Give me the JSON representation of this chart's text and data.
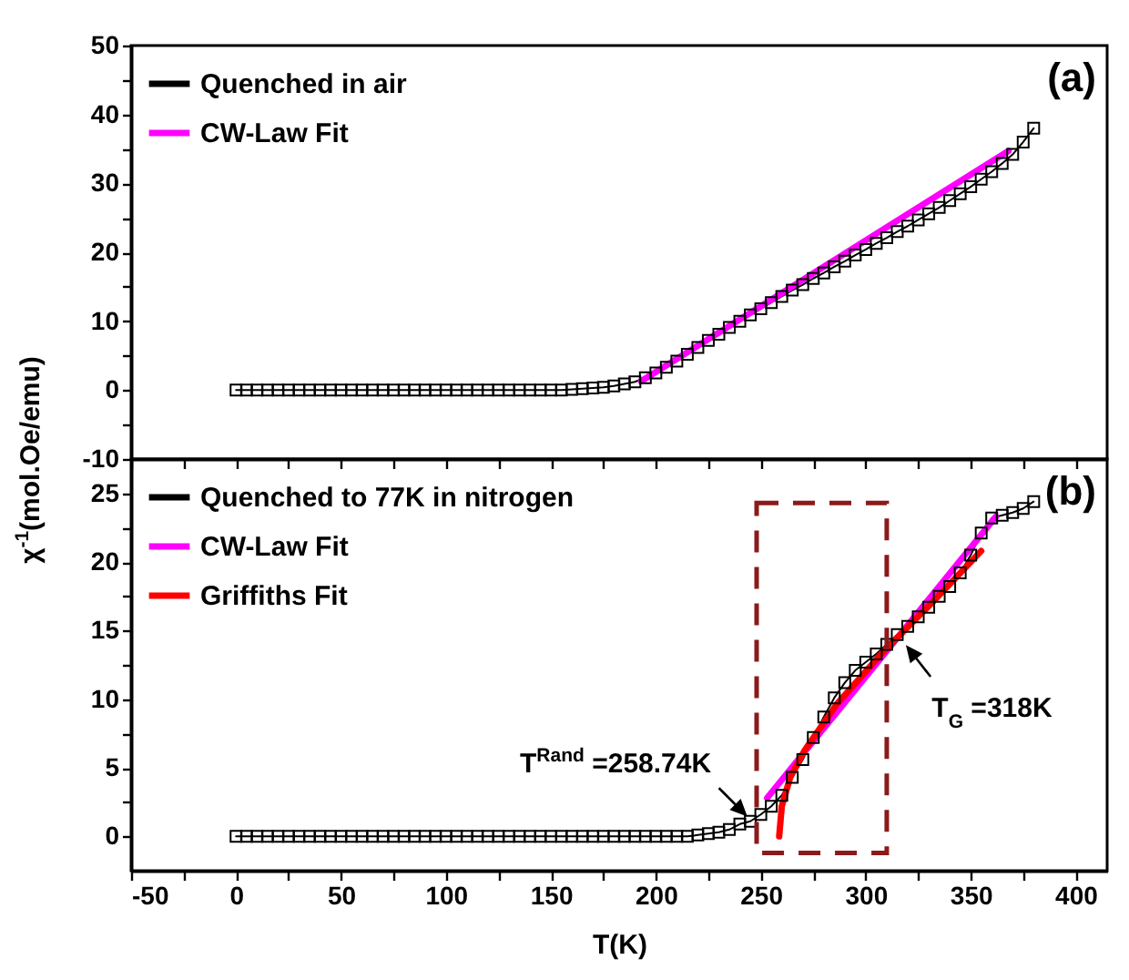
{
  "chart_data": [
    {
      "type": "line",
      "ylabel": "χ$^{-1}$(mol.Oe/emu)",
      "xlim": [
        -50,
        415
      ],
      "xticks": [
        -50,
        {
          "value": -25,
          "label": null
        },
        0,
        {
          "value": 25,
          "label": null
        },
        50,
        {
          "value": 75,
          "label": null
        },
        100,
        {
          "value": 125,
          "label": null
        },
        150,
        {
          "value": 175,
          "label": null
        },
        200,
        {
          "value": 225,
          "label": null
        },
        250,
        {
          "value": 275,
          "label": null
        },
        300,
        {
          "value": 325,
          "label": null
        },
        350,
        {
          "value": 375,
          "label": null
        },
        400
      ],
      "ylim": [
        -10,
        50
      ],
      "yticks": [
        -10,
        {
          "value": -5,
          "label": null
        },
        0,
        {
          "value": 5,
          "label": null
        },
        10,
        {
          "value": 15,
          "label": null
        },
        20,
        {
          "value": 25,
          "label": null
        },
        30,
        {
          "value": 35,
          "label": null
        },
        40,
        {
          "value": 45,
          "label": null
        },
        50
      ],
      "tick_labels": "y",
      "legend": "top left",
      "annotations": [
        "(a)"
      ],
      "series": [
        {
          "name": "Quenched in air",
          "color": "#000000",
          "marker": "square",
          "x": [
            0,
            5,
            10,
            15,
            20,
            25,
            30,
            35,
            40,
            45,
            50,
            55,
            60,
            65,
            70,
            75,
            80,
            85,
            90,
            95,
            100,
            105,
            110,
            115,
            120,
            125,
            130,
            135,
            140,
            145,
            150,
            155,
            160,
            165,
            170,
            175,
            180,
            185,
            190,
            195,
            200,
            205,
            210,
            215,
            220,
            225,
            230,
            235,
            240,
            245,
            250,
            255,
            260,
            265,
            270,
            275,
            280,
            285,
            290,
            295,
            300,
            305,
            310,
            315,
            320,
            325,
            330,
            335,
            340,
            345,
            350,
            355,
            360,
            365,
            370,
            375,
            380
          ],
          "values": [
            0,
            0,
            0,
            0,
            0,
            0,
            0,
            0,
            0,
            0,
            0,
            0,
            0,
            0,
            0,
            0,
            0,
            0,
            0,
            0,
            0,
            0,
            0,
            0,
            0,
            0,
            0,
            0,
            0,
            0,
            0,
            0,
            0.1,
            0.2,
            0.3,
            0.4,
            0.6,
            0.9,
            1.2,
            1.8,
            2.5,
            3.3,
            4.2,
            5.2,
            6.2,
            7.2,
            8.1,
            9.1,
            10,
            10.9,
            11.8,
            12.7,
            13.6,
            14.5,
            15.3,
            16.2,
            17,
            17.9,
            18.7,
            19.6,
            20.4,
            21.3,
            22.1,
            23,
            23.8,
            24.7,
            25.6,
            26.5,
            27.5,
            28.5,
            29.5,
            30.6,
            31.7,
            32.9,
            34.2,
            36,
            38
          ]
        },
        {
          "name": "CW-Law Fit",
          "color": "#ff00ff",
          "x": [
            193,
            368
          ],
          "values": [
            1.3,
            34.7
          ]
        }
      ]
    },
    {
      "type": "line",
      "xlabel": "T(K)",
      "xlim": [
        -50,
        415
      ],
      "xticks": [
        -50,
        {
          "value": -25,
          "label": null
        },
        0,
        {
          "value": 25,
          "label": null
        },
        50,
        {
          "value": 75,
          "label": null
        },
        100,
        {
          "value": 125,
          "label": null
        },
        150,
        {
          "value": 175,
          "label": null
        },
        200,
        {
          "value": 225,
          "label": null
        },
        250,
        {
          "value": 275,
          "label": null
        },
        300,
        {
          "value": 325,
          "label": null
        },
        350,
        {
          "value": 375,
          "label": null
        },
        400
      ],
      "ylim": [
        -2.5,
        27.5
      ],
      "yticks": [
        0,
        {
          "value": 2.5,
          "label": null
        },
        5,
        {
          "value": 7.5,
          "label": null
        },
        10,
        {
          "value": 12.5,
          "label": null
        },
        15,
        {
          "value": 17.5,
          "label": null
        },
        20,
        {
          "value": 22.5,
          "label": null
        },
        25
      ],
      "legend": "top left",
      "annotations": [
        "(b)",
        {
          "text": "T$^{Rand}$ =258.74K",
          "x": 245,
          "y": 1.1
        },
        {
          "text": "T$_{G}$ =318K",
          "x": 315,
          "y": 14.7
        }
      ],
      "series": [
        {
          "name": "Quenched to 77K in nitrogen",
          "color": "#000000",
          "marker": "square",
          "x": [
            0,
            5,
            10,
            15,
            20,
            25,
            30,
            35,
            40,
            45,
            50,
            55,
            60,
            65,
            70,
            75,
            80,
            85,
            90,
            95,
            100,
            105,
            110,
            115,
            120,
            125,
            130,
            135,
            140,
            145,
            150,
            155,
            160,
            165,
            170,
            175,
            180,
            185,
            190,
            195,
            200,
            205,
            210,
            215,
            220,
            225,
            230,
            235,
            240,
            245,
            250,
            255,
            260,
            265,
            270,
            275,
            280,
            285,
            290,
            295,
            300,
            305,
            310,
            315,
            320,
            325,
            330,
            335,
            340,
            345,
            350,
            355,
            360,
            365,
            370,
            375,
            380
          ],
          "values": [
            0,
            0,
            0,
            0,
            0,
            0,
            0,
            0,
            0,
            0,
            0,
            0,
            0,
            0,
            0,
            0,
            0,
            0,
            0,
            0,
            0,
            0,
            0,
            0,
            0,
            0,
            0,
            0,
            0,
            0,
            0,
            0,
            0,
            0,
            0,
            0,
            0,
            0,
            0,
            0,
            0,
            0,
            0,
            0,
            0.1,
            0.2,
            0.3,
            0.5,
            0.9,
            1.1,
            1.6,
            2.2,
            3,
            4.3,
            5.6,
            7.2,
            8.7,
            10.1,
            11.2,
            12.1,
            12.7,
            13.3,
            14,
            14.7,
            15.3,
            16,
            16.7,
            17.5,
            18.2,
            19.2,
            20.5,
            22.1,
            23.2,
            23.4,
            23.6,
            23.9,
            24.4
          ]
        },
        {
          "name": "CW-Law Fit",
          "color": "#ff00ff",
          "x": [
            253,
            362
          ],
          "values": [
            2.8,
            23.3
          ]
        },
        {
          "name": "Griffiths Fit",
          "color": "#ff0000",
          "x": [
            258.74,
            260,
            264,
            271,
            286,
            308,
            332,
            355
          ],
          "values": [
            0,
            2.2,
            4.3,
            6.3,
            9.6,
            13.4,
            17.1,
            20.8
          ]
        }
      ]
    }
  ]
}
